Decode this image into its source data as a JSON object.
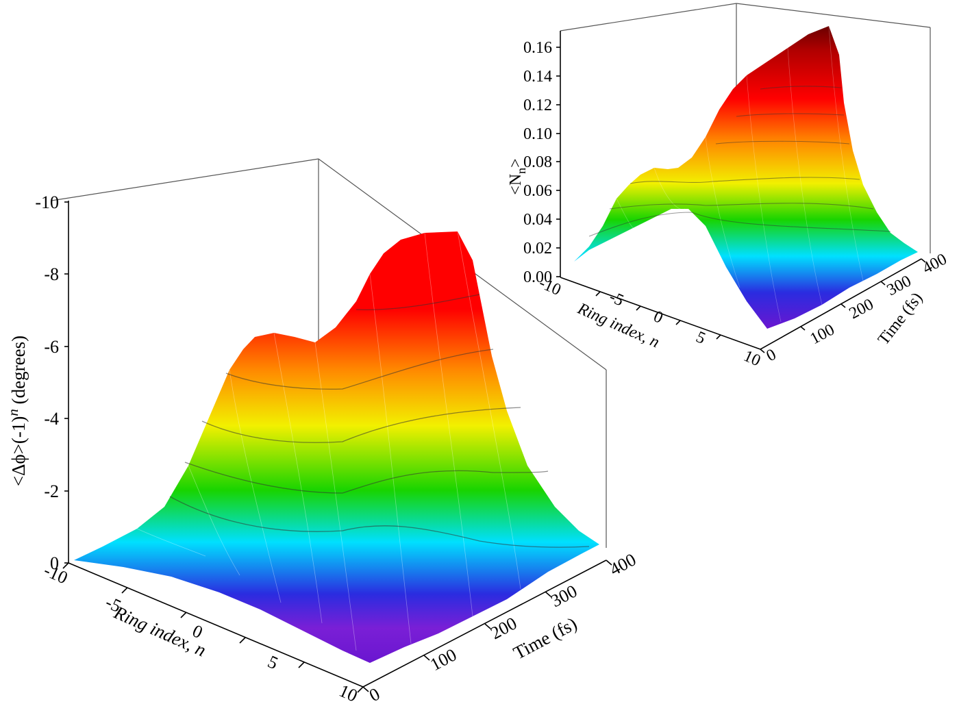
{
  "chart_data": [
    {
      "type": "surface3d",
      "title": "",
      "zlabel_main": "<Δϕ>(-1)",
      "zlabel_sup": "n",
      "zlabel_tail": " (degrees)",
      "xlabel_main": "Ring index, ",
      "xlabel_var": "n",
      "ylabel": "Time (fs)",
      "x_ticks": [
        "-10",
        "-5",
        "0",
        "5",
        "10"
      ],
      "y_ticks": [
        "0",
        "100",
        "200",
        "300",
        "400"
      ],
      "z_ticks": [
        "0",
        "-2",
        "-4",
        "-6",
        "-8",
        "-10"
      ],
      "xlim": [
        -10,
        10
      ],
      "ylim": [
        0,
        400
      ],
      "zlim": [
        0,
        -10
      ],
      "colormap": [
        "#7a1fd6",
        "#2a2ce0",
        "#00e0ff",
        "#18d400",
        "#f2f000",
        "#ff8800",
        "#ff0000"
      ],
      "surface_features": {
        "max_value": -9.1,
        "max_at": {
          "ring_index": 10,
          "time_fs": 400
        },
        "secondary_peak": {
          "value": -6.4,
          "ring_index": -5,
          "time_fs": 400
        },
        "contour_interval": 1
      }
    },
    {
      "type": "surface3d",
      "title": "",
      "zlabel_main": "<N",
      "zlabel_sub": "n",
      "zlabel_tail": ">",
      "xlabel_main": "Ring index, ",
      "xlabel_var": "n",
      "ylabel": "Time (fs)",
      "x_ticks": [
        "-10",
        "-5",
        "0",
        "5",
        "10"
      ],
      "y_ticks": [
        "0",
        "100",
        "200",
        "300",
        "400"
      ],
      "z_ticks": [
        "0.00",
        "0.02",
        "0.04",
        "0.06",
        "0.08",
        "0.10",
        "0.12",
        "0.14",
        "0.16"
      ],
      "xlim": [
        -10,
        10
      ],
      "ylim": [
        0,
        400
      ],
      "zlim": [
        0,
        0.17
      ],
      "colormap": [
        "#7a1fd6",
        "#2a2ce0",
        "#00e0ff",
        "#18d400",
        "#f2f000",
        "#ff8800",
        "#ff0000",
        "#8a0000"
      ],
      "surface_features": {
        "max_value": 0.165,
        "max_at": {
          "ring_index": 10,
          "time_fs": 400
        },
        "secondary_peak": {
          "value": 0.07,
          "ring_index": -2,
          "time_fs": 400
        },
        "contour_interval": 0.02
      }
    }
  ]
}
